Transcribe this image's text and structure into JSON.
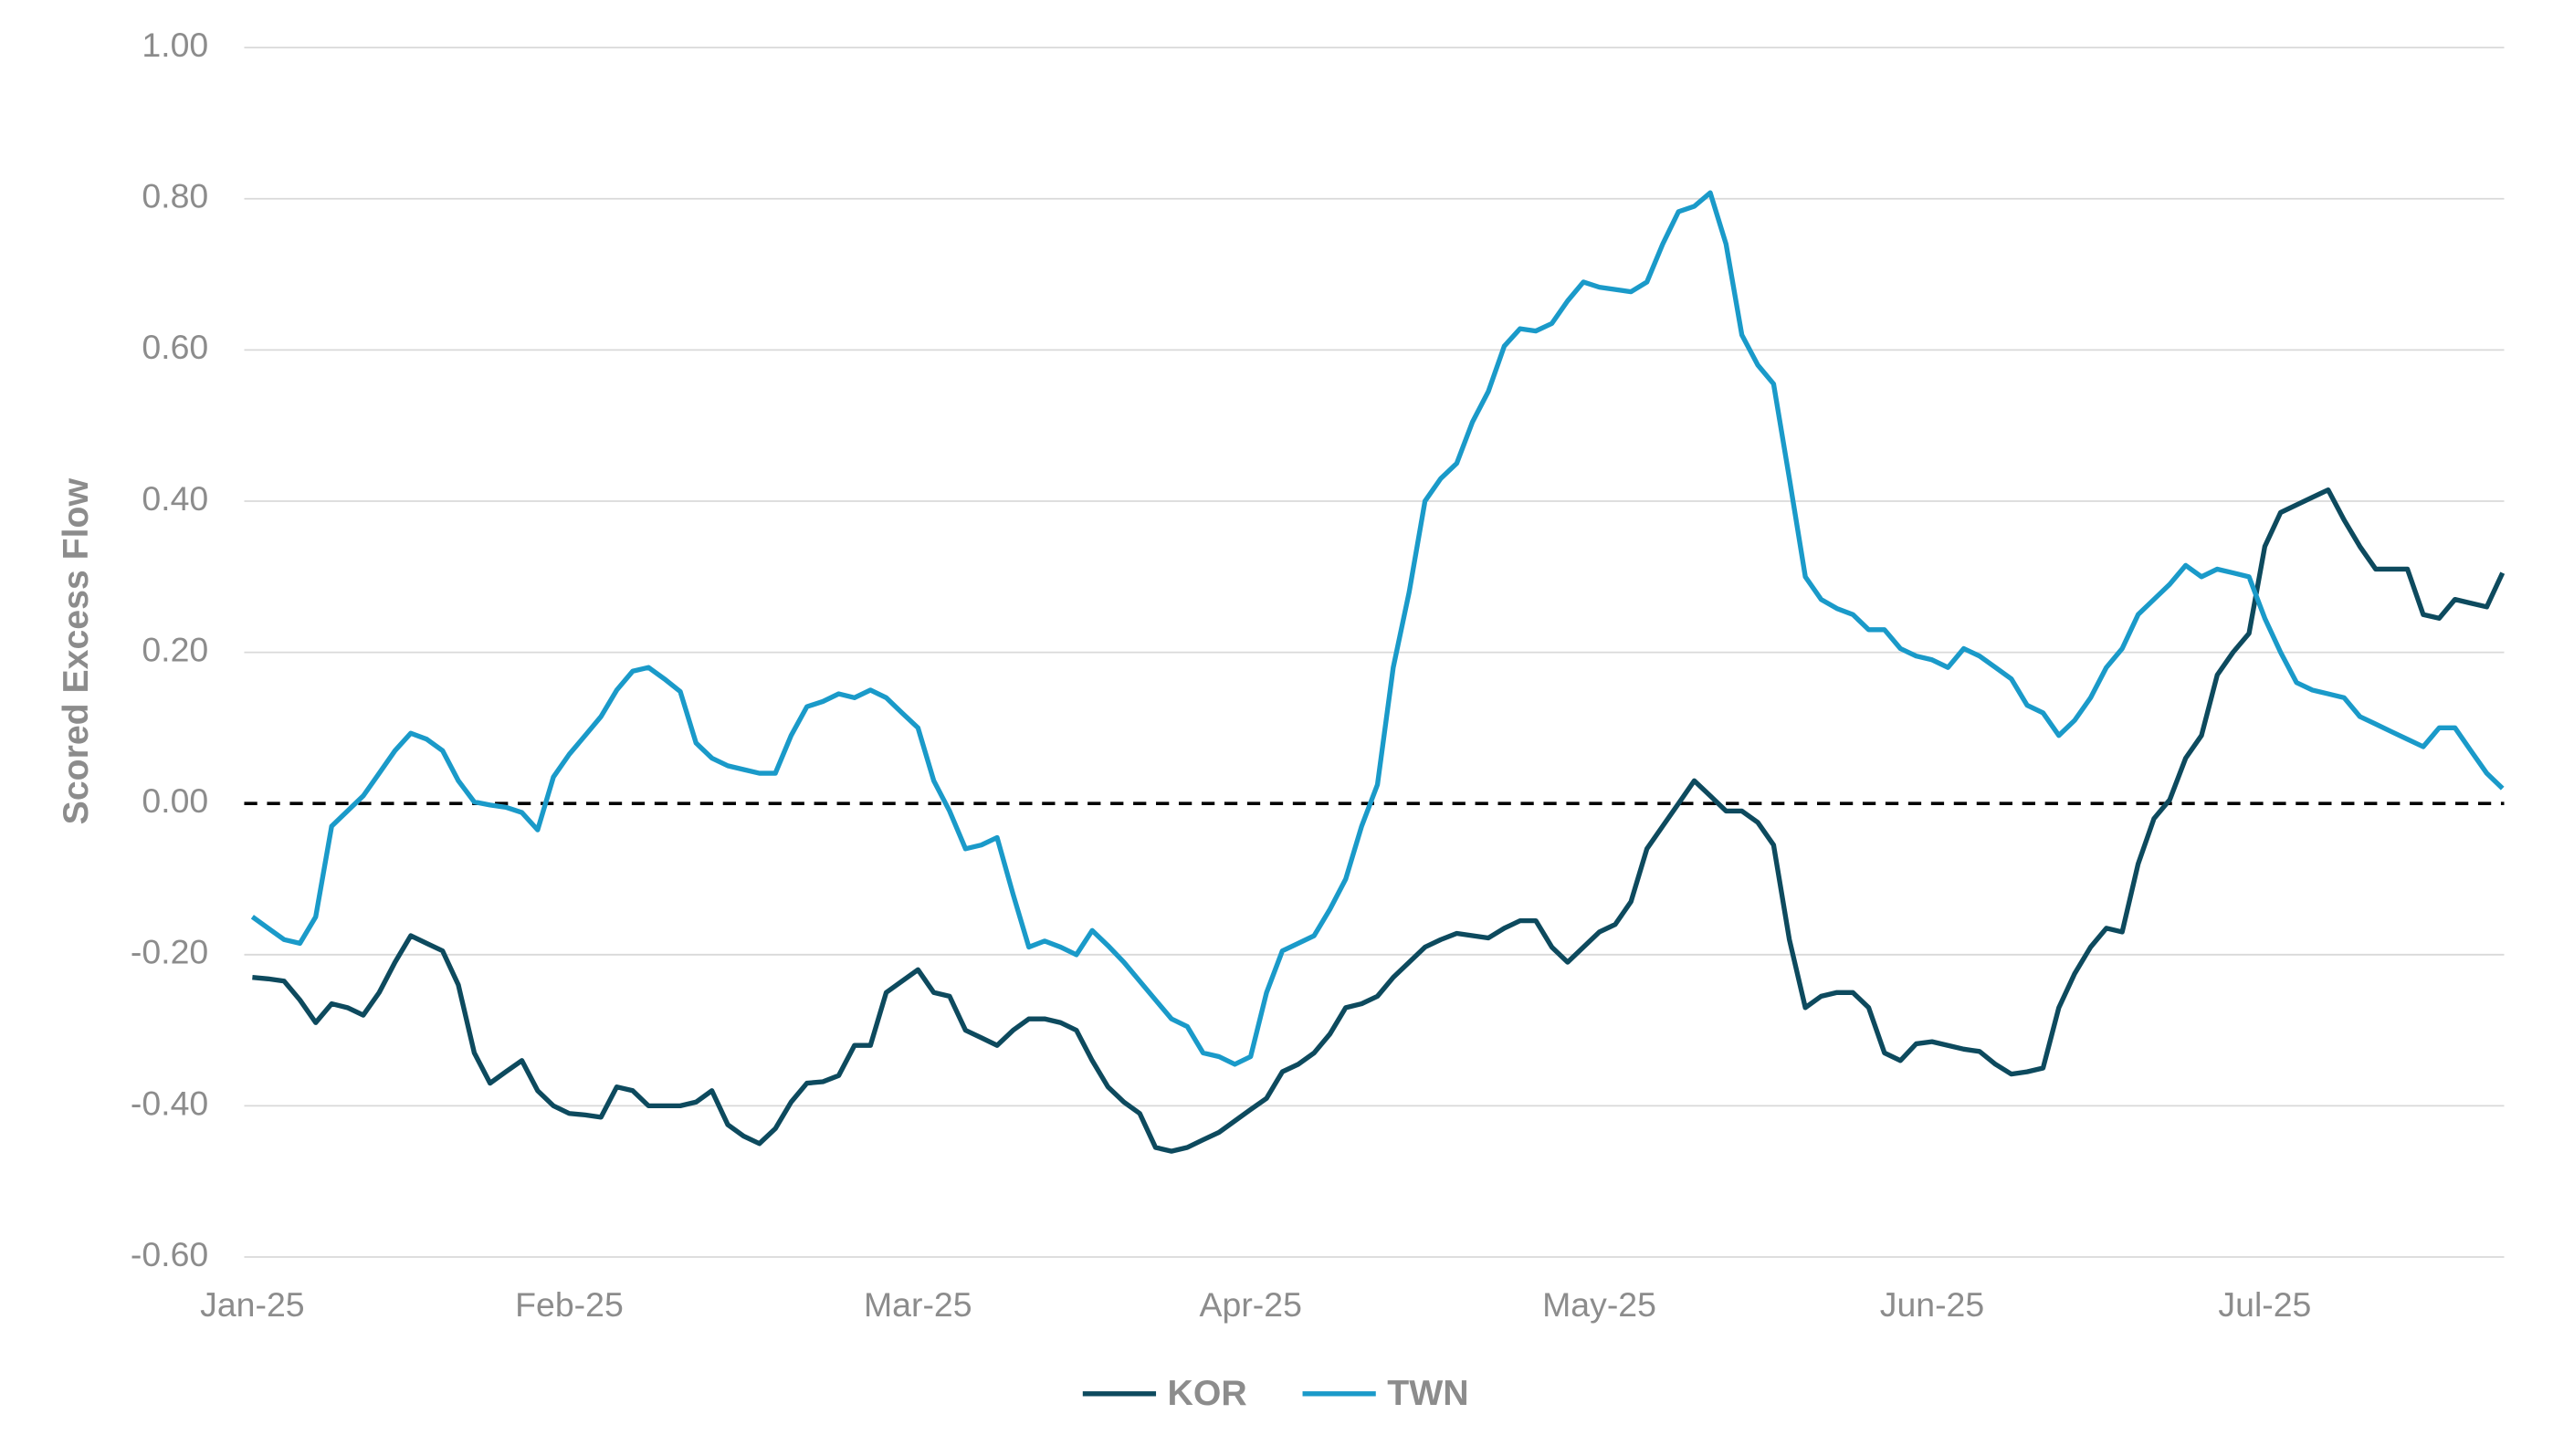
{
  "chart_data": {
    "type": "line",
    "y_label": "Scored Excess Flow",
    "categories": [
      "Jan-25",
      null,
      null,
      null,
      null,
      null,
      null,
      null,
      null,
      null,
      null,
      null,
      null,
      null,
      null,
      null,
      null,
      null,
      null,
      null,
      "Feb-25",
      null,
      null,
      null,
      null,
      null,
      null,
      null,
      null,
      null,
      null,
      null,
      null,
      null,
      null,
      null,
      null,
      null,
      null,
      null,
      null,
      null,
      "Mar-25",
      null,
      null,
      null,
      null,
      null,
      null,
      null,
      null,
      null,
      null,
      null,
      null,
      null,
      null,
      null,
      null,
      null,
      null,
      null,
      null,
      "Apr-25",
      null,
      null,
      null,
      null,
      null,
      null,
      null,
      null,
      null,
      null,
      null,
      null,
      null,
      null,
      null,
      null,
      null,
      null,
      null,
      null,
      null,
      "May-25",
      null,
      null,
      null,
      null,
      null,
      null,
      null,
      null,
      null,
      null,
      null,
      null,
      null,
      null,
      null,
      null,
      null,
      null,
      null,
      null,
      "Jun-25",
      null,
      null,
      null,
      null,
      null,
      null,
      null,
      null,
      null,
      null,
      null,
      null,
      null,
      null,
      null,
      null,
      null,
      null,
      null,
      null,
      "Jul-25",
      null,
      null,
      null,
      null,
      null,
      null,
      null,
      null,
      null,
      null,
      null,
      null,
      null,
      null,
      null
    ],
    "series": [
      {
        "name": "KOR",
        "color": "#0d4a5e",
        "values": [
          -0.23,
          -0.232,
          -0.235,
          -0.26,
          -0.29,
          -0.265,
          -0.27,
          -0.28,
          -0.25,
          -0.21,
          -0.175,
          -0.185,
          -0.195,
          -0.24,
          -0.33,
          -0.37,
          -0.355,
          -0.34,
          -0.38,
          -0.4,
          -0.41,
          -0.412,
          -0.415,
          -0.375,
          -0.38,
          -0.4,
          -0.4,
          -0.4,
          -0.395,
          -0.38,
          -0.425,
          -0.44,
          -0.45,
          -0.43,
          -0.395,
          -0.37,
          -0.368,
          -0.36,
          -0.32,
          -0.32,
          -0.25,
          -0.235,
          -0.22,
          -0.25,
          -0.255,
          -0.3,
          -0.31,
          -0.32,
          -0.3,
          -0.285,
          -0.285,
          -0.29,
          -0.3,
          -0.34,
          -0.375,
          -0.395,
          -0.41,
          -0.455,
          -0.46,
          -0.455,
          -0.445,
          -0.435,
          -0.42,
          -0.405,
          -0.39,
          -0.355,
          -0.345,
          -0.33,
          -0.305,
          -0.27,
          -0.265,
          -0.255,
          -0.23,
          -0.21,
          -0.19,
          -0.18,
          -0.172,
          -0.175,
          -0.178,
          -0.165,
          -0.155,
          -0.155,
          -0.19,
          -0.21,
          -0.19,
          -0.17,
          -0.16,
          -0.13,
          -0.06,
          -0.03,
          0.0,
          0.03,
          0.01,
          -0.01,
          -0.01,
          -0.025,
          -0.055,
          -0.18,
          -0.27,
          -0.255,
          -0.25,
          -0.25,
          -0.27,
          -0.33,
          -0.34,
          -0.318,
          -0.315,
          -0.32,
          -0.325,
          -0.328,
          -0.345,
          -0.358,
          -0.355,
          -0.35,
          -0.27,
          -0.225,
          -0.19,
          -0.165,
          -0.17,
          -0.08,
          -0.02,
          0.005,
          0.06,
          0.09,
          0.17,
          0.2,
          0.225,
          0.34,
          0.385,
          0.395,
          0.405,
          0.415,
          0.375,
          0.34,
          0.31,
          0.31,
          0.31,
          0.25,
          0.245,
          0.27,
          0.265,
          0.26,
          0.305
        ]
      },
      {
        "name": "TWN",
        "color": "#1a9ac9",
        "values": [
          -0.15,
          -0.165,
          -0.18,
          -0.185,
          -0.15,
          -0.03,
          -0.01,
          0.01,
          0.04,
          0.07,
          0.093,
          0.085,
          0.07,
          0.03,
          0.002,
          -0.002,
          -0.005,
          -0.012,
          -0.035,
          0.035,
          0.065,
          0.09,
          0.115,
          0.15,
          0.175,
          0.18,
          0.165,
          0.148,
          0.08,
          0.06,
          0.05,
          0.045,
          0.04,
          0.04,
          0.09,
          0.128,
          0.135,
          0.145,
          0.14,
          0.15,
          0.14,
          0.12,
          0.1,
          0.03,
          -0.01,
          -0.06,
          -0.055,
          -0.045,
          -0.12,
          -0.19,
          -0.182,
          -0.19,
          -0.2,
          -0.168,
          -0.188,
          -0.21,
          -0.235,
          -0.26,
          -0.285,
          -0.295,
          -0.33,
          -0.335,
          -0.345,
          -0.335,
          -0.25,
          -0.195,
          -0.185,
          -0.175,
          -0.14,
          -0.1,
          -0.03,
          0.025,
          0.18,
          0.28,
          0.4,
          0.43,
          0.45,
          0.505,
          0.545,
          0.605,
          0.628,
          0.625,
          0.635,
          0.665,
          0.69,
          0.683,
          0.68,
          0.677,
          0.69,
          0.74,
          0.783,
          0.79,
          0.808,
          0.74,
          0.62,
          0.58,
          0.555,
          0.43,
          0.3,
          0.27,
          0.258,
          0.25,
          0.23,
          0.23,
          0.205,
          0.195,
          0.19,
          0.18,
          0.205,
          0.195,
          0.18,
          0.165,
          0.13,
          0.12,
          0.09,
          0.11,
          0.14,
          0.18,
          0.205,
          0.25,
          0.27,
          0.29,
          0.315,
          0.3,
          0.31,
          0.305,
          0.3,
          0.245,
          0.2,
          0.16,
          0.15,
          0.145,
          0.14,
          0.115,
          0.105,
          0.095,
          0.085,
          0.075,
          0.1,
          0.1,
          0.07,
          0.04,
          0.02
        ]
      }
    ],
    "ylim": [
      -0.6,
      1.0
    ],
    "yticks": [
      {
        "value": 1.0,
        "label": "1.00"
      },
      {
        "value": 0.8,
        "label": "0.80"
      },
      {
        "value": 0.6,
        "label": "0.60"
      },
      {
        "value": 0.4,
        "label": "0.40"
      },
      {
        "value": 0.2,
        "label": "0.20"
      },
      {
        "value": 0,
        "label": "0.00"
      },
      {
        "value": -0.2,
        "label": "-0.20"
      },
      {
        "value": -0.4,
        "label": "-0.40"
      },
      {
        "value": -0.6,
        "label": "-0.60"
      }
    ],
    "grid": true,
    "zero_line": "dashed",
    "legend": "bottom"
  }
}
